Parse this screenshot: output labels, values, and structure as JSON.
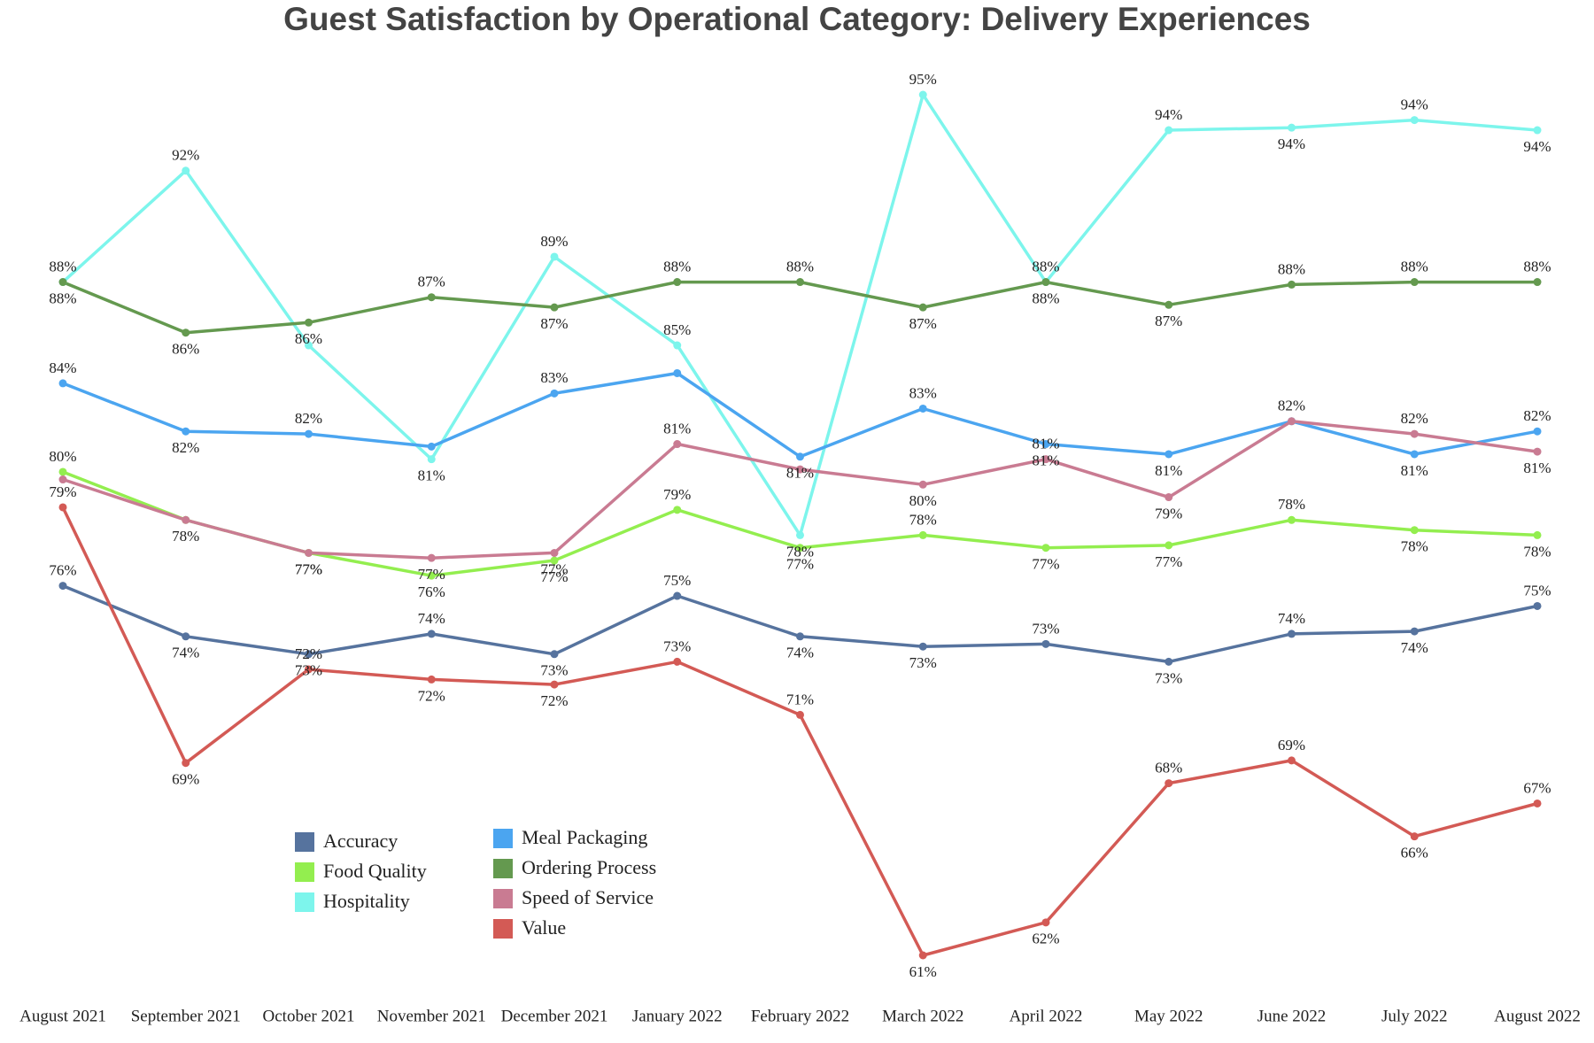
{
  "chart_data": {
    "type": "line",
    "title": "Guest Satisfaction by Operational Category: Delivery Experiences",
    "categories": [
      "August 2021",
      "September 2021",
      "October 2021",
      "November 2021",
      "December 2021",
      "January 2022",
      "February 2022",
      "March 2022",
      "April 2022",
      "May 2022",
      "June 2022",
      "July 2022",
      "August 2022"
    ],
    "series": [
      {
        "name": "Accuracy",
        "color": "#56739e",
        "values": [
          75.6,
          73.6,
          72.9,
          73.7,
          72.9,
          75.2,
          73.6,
          73.2,
          73.3,
          72.6,
          73.7,
          73.8,
          74.8
        ],
        "value_labels": [
          "76%",
          "74%",
          "73%",
          "74%",
          "73%",
          "75%",
          "74%",
          "73%",
          "73%",
          "73%",
          "74%",
          "74%",
          "75%"
        ]
      },
      {
        "name": "Food Quality",
        "color": "#93ee4f",
        "values": [
          80.1,
          78.2,
          76.9,
          76.0,
          76.6,
          78.6,
          77.1,
          77.6,
          77.1,
          77.2,
          78.2,
          77.8,
          77.6
        ],
        "value_labels": [
          "80%",
          "78%",
          "77%",
          "76%",
          "77%",
          "79%",
          "77%",
          "78%",
          "77%",
          "77%",
          "78%",
          "78%",
          "78%"
        ]
      },
      {
        "name": "Hospitality",
        "color": "#7df5ec",
        "values": [
          87.6,
          92.0,
          85.1,
          80.6,
          88.6,
          85.1,
          77.6,
          95.0,
          87.6,
          93.6,
          93.7,
          94.0,
          93.6
        ],
        "value_labels": [
          "88%",
          "92%",
          null,
          "81%",
          "89%",
          "85%",
          "78%",
          "95%",
          "88%",
          "94%",
          "94%",
          "94%",
          "94%"
        ]
      },
      {
        "name": "Meal Packaging",
        "color": "#4ba5f0",
        "values": [
          83.6,
          81.7,
          81.6,
          81.1,
          83.2,
          84.0,
          80.7,
          82.6,
          81.2,
          80.8,
          82.1,
          80.8,
          81.7
        ],
        "value_labels": [
          "84%",
          "82%",
          "82%",
          null,
          "83%",
          null,
          "81%",
          "83%",
          "81%",
          "81%",
          "82%",
          "81%",
          "82%"
        ]
      },
      {
        "name": "Ordering Process",
        "color": "#64994f",
        "values": [
          87.6,
          85.6,
          86.0,
          87.0,
          86.6,
          87.6,
          87.6,
          86.6,
          87.6,
          86.7,
          87.5,
          87.6,
          87.6
        ],
        "value_labels": [
          "88%",
          "86%",
          "86%",
          "87%",
          "87%",
          "88%",
          "88%",
          "87%",
          "88%",
          "87%",
          "88%",
          "88%",
          "88%"
        ]
      },
      {
        "name": "Speed of Service",
        "color": "#c97b92",
        "values": [
          79.8,
          78.2,
          76.9,
          76.7,
          76.9,
          81.2,
          80.2,
          79.6,
          80.6,
          79.1,
          82.1,
          81.6,
          80.9
        ],
        "value_labels": [
          null,
          null,
          "77%",
          "77%",
          "77%",
          "81%",
          null,
          "80%",
          "81%",
          "79%",
          null,
          "82%",
          "81%"
        ]
      },
      {
        "name": "Value",
        "color": "#d35a55",
        "values": [
          78.7,
          68.6,
          72.3,
          71.9,
          71.7,
          72.6,
          70.5,
          61.0,
          62.3,
          67.8,
          68.7,
          65.7,
          67.0
        ],
        "value_labels": [
          "79%",
          "69%",
          "72%",
          "72%",
          "72%",
          "73%",
          "71%",
          "61%",
          "62%",
          "68%",
          "69%",
          "66%",
          "67%"
        ]
      }
    ]
  }
}
